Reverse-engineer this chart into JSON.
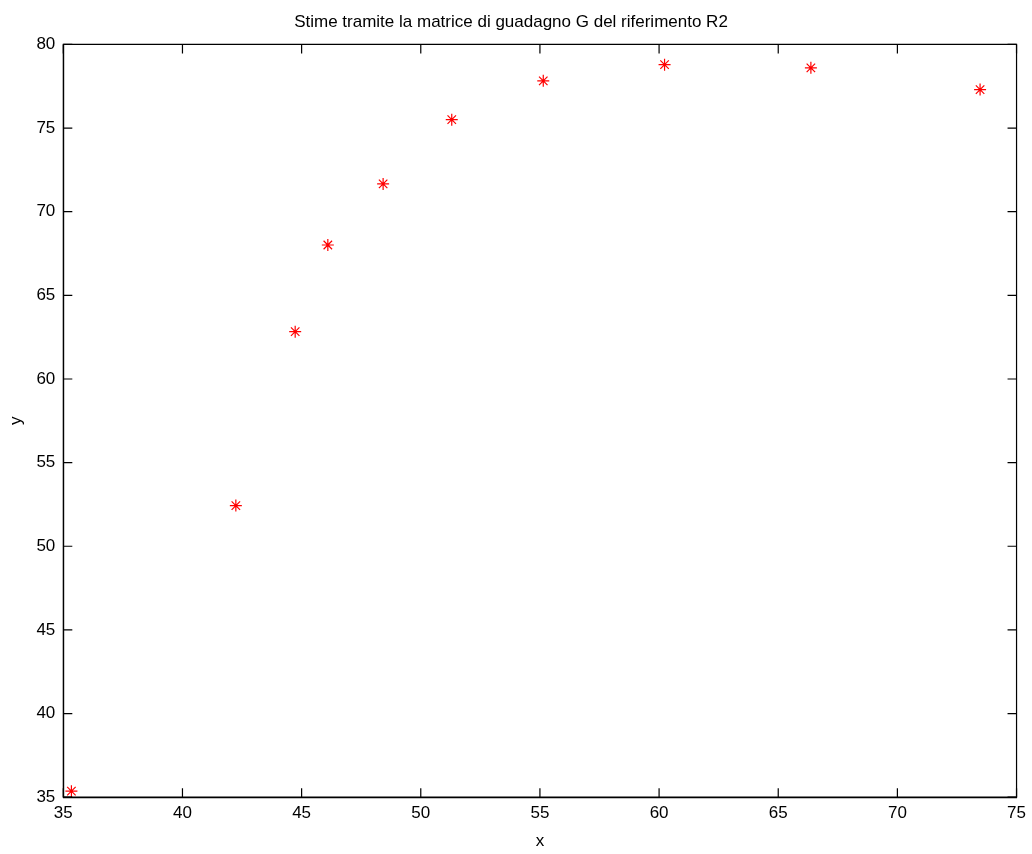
{
  "chart_data": {
    "type": "scatter",
    "title": "Stime tramite la matrice di guadagno G del riferimento R2",
    "xlabel": "x",
    "ylabel": "y",
    "x": [
      35.34,
      42.24,
      44.73,
      46.1,
      48.42,
      51.3,
      55.14,
      60.23,
      66.37,
      73.47
    ],
    "series": [
      {
        "color": "#ff0000",
        "values": [
          35.36,
          52.43,
          62.83,
          68.01,
          71.66,
          75.5,
          77.82,
          78.79,
          78.6,
          77.3
        ]
      }
    ],
    "xlim": [
      35,
      75
    ],
    "xticks": [
      35,
      40,
      45,
      50,
      55,
      60,
      65,
      70,
      75
    ],
    "ylim": [
      35,
      80
    ],
    "yticks": [
      35,
      40,
      45,
      50,
      55,
      60,
      65,
      70,
      75,
      80
    ],
    "grid": false,
    "legend": false,
    "marker": "cross"
  }
}
